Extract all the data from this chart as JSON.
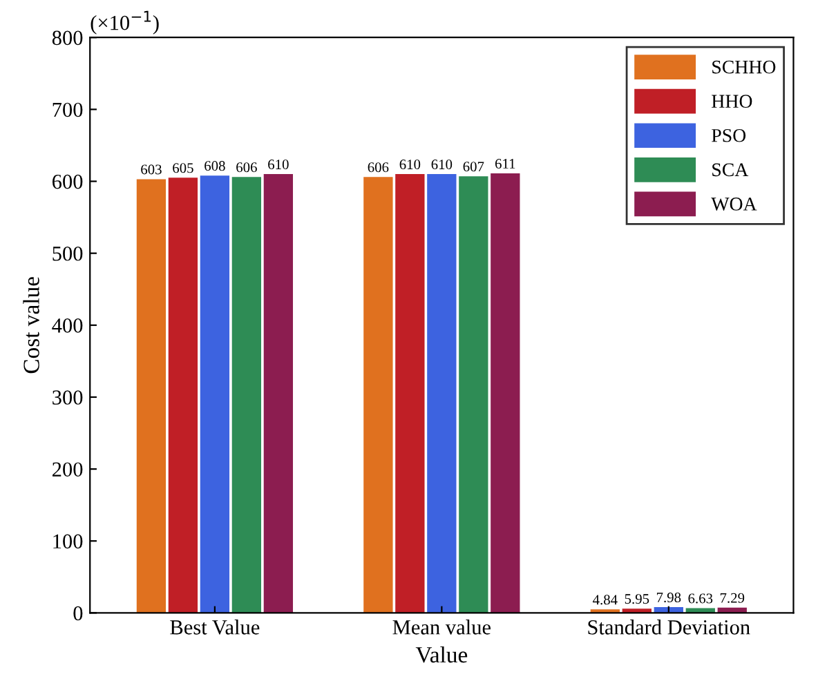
{
  "chart_data": {
    "type": "bar",
    "xlabel": "Value",
    "ylabel": "Cost value",
    "annotations": [
      "(×10$^{−1}$)"
    ],
    "categories": [
      "Best Value",
      "Mean value",
      "Standard Deviation"
    ],
    "series": [
      {
        "name": "SCHHO",
        "color": "#e0711f",
        "values": [
          603,
          606,
          4.84
        ]
      },
      {
        "name": "HHO",
        "color": "#c01f26",
        "values": [
          605,
          610,
          5.95
        ]
      },
      {
        "name": "PSO",
        "color": "#3d63e0",
        "values": [
          608,
          610,
          7.98
        ]
      },
      {
        "name": "SCA",
        "color": "#2e8c55",
        "values": [
          606,
          607,
          6.63
        ]
      },
      {
        "name": "WOA",
        "color": "#8c1d50",
        "values": [
          610,
          611,
          7.29
        ]
      }
    ],
    "ylim": [
      0,
      800
    ],
    "yticks": [
      0,
      100,
      200,
      300,
      400,
      500,
      600,
      700,
      800
    ],
    "data_labels": true,
    "legend": "top right",
    "grid": false
  }
}
